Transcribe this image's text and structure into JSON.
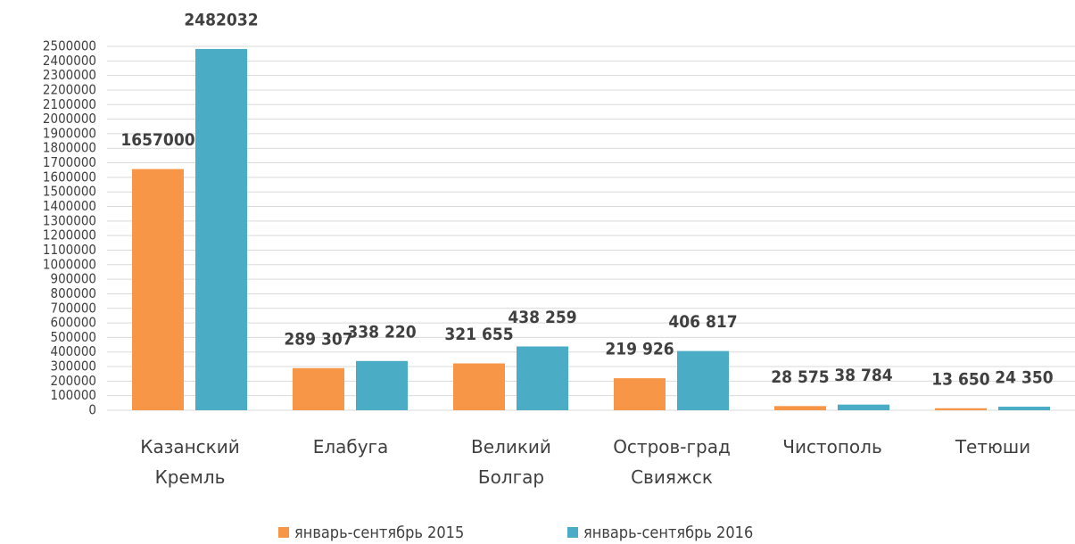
{
  "chart_data": {
    "type": "bar",
    "categories": [
      "Казанский Кремль",
      "Елабуга",
      "Великий Болгар",
      "Остров-град Свияжск",
      "Чистополь",
      "Тетюши"
    ],
    "series": [
      {
        "name": "январь-сентябрь 2015",
        "color": "#f79646",
        "values": [
          1657000,
          289307,
          321655,
          219926,
          28575,
          13650
        ],
        "value_labels": [
          "1657000",
          "289 307",
          "321 655",
          "219 926",
          "28 575",
          "13 650"
        ]
      },
      {
        "name": "январь-сентябрь 2016",
        "color": "#4bacc6",
        "values": [
          2482032,
          338220,
          438259,
          406817,
          38784,
          24350
        ],
        "value_labels": [
          "2482032",
          "338 220",
          "438 259",
          "406 817",
          "38 784",
          "24 350"
        ]
      }
    ],
    "ylim": [
      0,
      2500000
    ],
    "yticks": [
      0,
      100000,
      200000,
      300000,
      400000,
      500000,
      600000,
      700000,
      800000,
      900000,
      1000000,
      1100000,
      1200000,
      1300000,
      1400000,
      1500000,
      1600000,
      1700000,
      1800000,
      1900000,
      2000000,
      2100000,
      2200000,
      2300000,
      2400000,
      2500000
    ],
    "grid": true,
    "legend": "bottom"
  }
}
